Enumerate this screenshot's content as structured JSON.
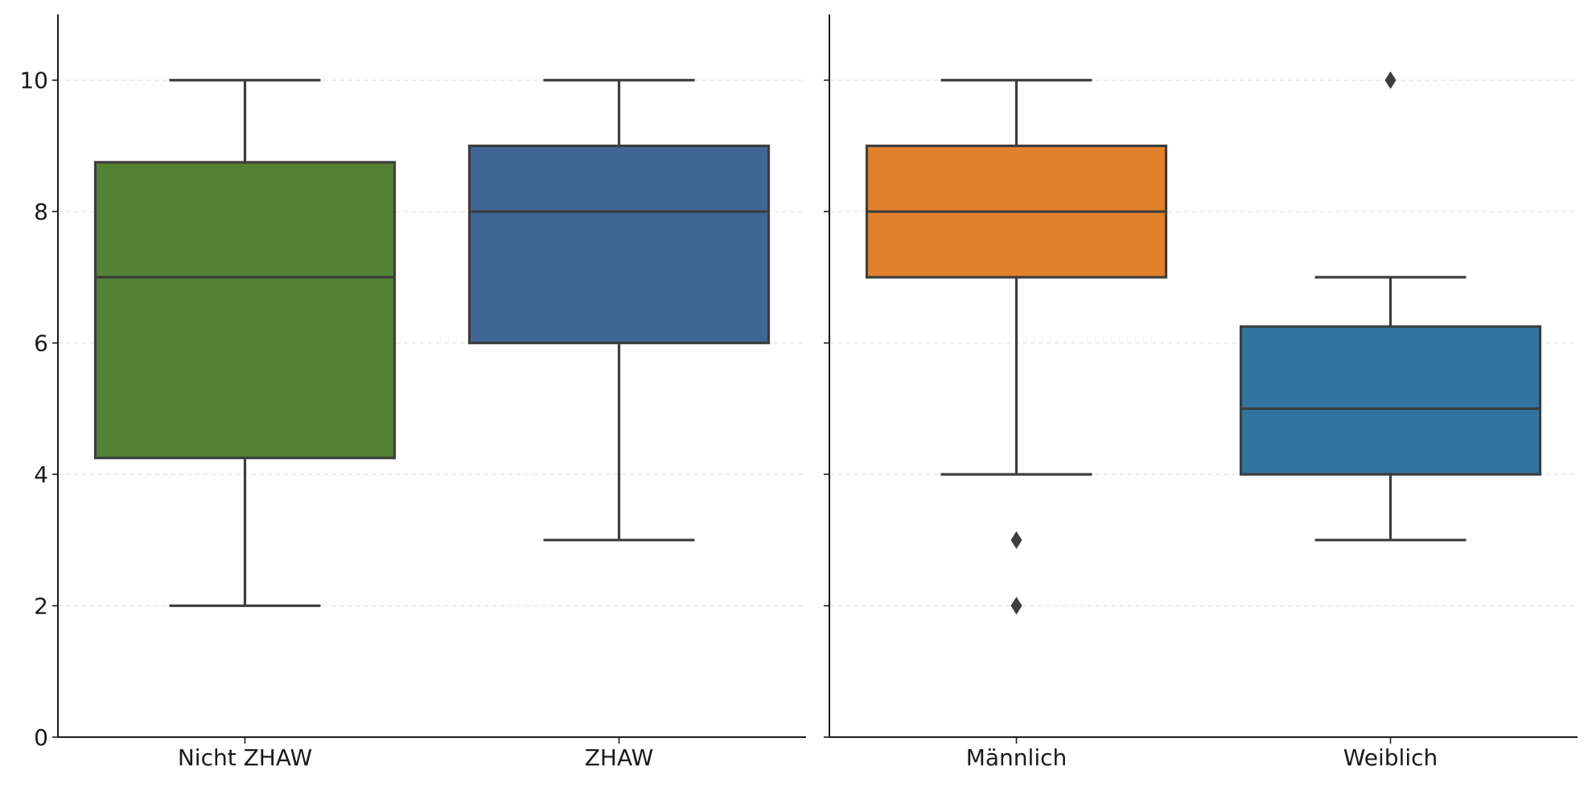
{
  "chart_data": [
    {
      "type": "box",
      "title": "",
      "xlabel": "",
      "ylabel": "",
      "ylim": [
        0,
        11
      ],
      "yticks": [
        0,
        2,
        4,
        6,
        8,
        10
      ],
      "ytick_labels": [
        "0",
        "2",
        "4",
        "6",
        "8",
        "10"
      ],
      "grid": "horizontal dashed",
      "categories": [
        "Nicht ZHAW",
        "ZHAW"
      ],
      "boxes": [
        {
          "category": "Nicht ZHAW",
          "color": "#548235",
          "whisker_low": 2,
          "q1": 4.25,
          "median": 7,
          "q3": 8.75,
          "whisker_high": 10,
          "outliers": []
        },
        {
          "category": "ZHAW",
          "color": "#3e6796",
          "whisker_low": 3,
          "q1": 6,
          "median": 8,
          "q3": 9,
          "whisker_high": 10,
          "outliers": []
        }
      ]
    },
    {
      "type": "box",
      "title": "",
      "xlabel": "",
      "ylabel": "",
      "ylim": [
        0,
        11
      ],
      "yticks": [
        0,
        2,
        4,
        6,
        8,
        10
      ],
      "ytick_labels": [],
      "grid": "horizontal dashed",
      "categories": [
        "Männlich",
        "Weiblich"
      ],
      "boxes": [
        {
          "category": "Männlich",
          "color": "#e1812c",
          "whisker_low": 4,
          "q1": 7,
          "median": 8,
          "q3": 9,
          "whisker_high": 10,
          "outliers": [
            3,
            2
          ]
        },
        {
          "category": "Weiblich",
          "color": "#3274a1",
          "whisker_low": 3,
          "q1": 4,
          "median": 5,
          "q3": 6.25,
          "whisker_high": 7,
          "outliers": [
            10
          ]
        }
      ]
    }
  ]
}
